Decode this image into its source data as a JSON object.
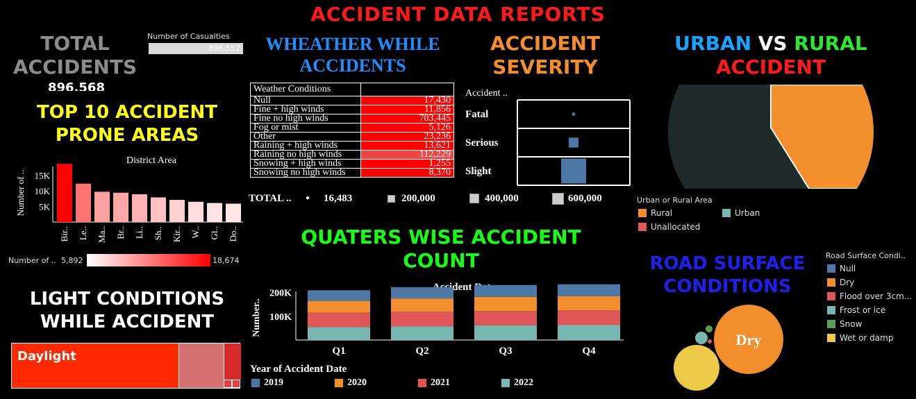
{
  "dashboard": {
    "title": "ACCIDENT DATA REPORTS"
  },
  "total_accidents": {
    "title_line1": "TOTAL",
    "title_line2": "ACCIDENTS",
    "value": "896,568",
    "casualties_label": "Number of Casualties",
    "casualties_value": "896,552"
  },
  "top10": {
    "title_line1": "TOP 10 ACCIDENT",
    "title_line2": "PRONE AREAS",
    "chart_data": {
      "type": "bar",
      "title": "District Area",
      "ylabel": "Number of ..",
      "categories": [
        "Bir..",
        "Le..",
        "Ma..",
        "Br..",
        "Li..",
        "Sh..",
        "Kir..",
        "W..",
        "Gl..",
        "Do.."
      ],
      "values": [
        18674,
        12300,
        9700,
        9400,
        8900,
        7900,
        7100,
        6500,
        6100,
        5892
      ],
      "yticks": [
        "5K",
        "10K",
        "15K"
      ],
      "ylim": [
        0,
        20000
      ]
    },
    "legend": {
      "label": "Number of ..",
      "min": "5,892",
      "max": "18,674"
    }
  },
  "light_conditions": {
    "title_line1": "LIGHT CONDITIONS",
    "title_line2": "WHILE ACCIDENT",
    "daylight_label": "Daylight"
  },
  "weather": {
    "title_line1": "WHEATHER WHILE",
    "title_line2": "ACCIDENTS",
    "column_header": "Weather Conditions",
    "rows": [
      {
        "label": "Null",
        "value": "17,430"
      },
      {
        "label": "Fine + high winds",
        "value": "11,856"
      },
      {
        "label": "Fine no high winds",
        "value": "703,445"
      },
      {
        "label": "Fog or mist",
        "value": "5,126"
      },
      {
        "label": "Other",
        "value": "23,236"
      },
      {
        "label": "Raining + high winds",
        "value": "13,621"
      },
      {
        "label": "Raining no high winds",
        "value": "112,229"
      },
      {
        "label": "Snowing + high winds",
        "value": "1,255"
      },
      {
        "label": "Snowing no high winds",
        "value": "8,370"
      }
    ]
  },
  "severity": {
    "title_line1": "ACCIDENT",
    "title_line2": "SEVERITY",
    "header": "Accident ..",
    "chart_data": {
      "type": "table",
      "categories": [
        "Fatal",
        "Serious",
        "Slight"
      ],
      "values": [
        11500,
        120000,
        765000
      ]
    },
    "size_legend": {
      "total_label": "TOTAL ..",
      "v1": "16,483",
      "v2": "200,000",
      "v3": "400,000",
      "v4": "600,000"
    }
  },
  "urban_rural": {
    "title_urban": "URBAN",
    "title_vs": "VS",
    "title_rural": "RURAL",
    "title_line2": "ACCIDENT",
    "legend_title": "Urban or Rural Area",
    "chart_data": {
      "type": "pie",
      "categories": [
        "Rural",
        "Urban",
        "Unallocated"
      ],
      "values": [
        41,
        59,
        0.1
      ]
    },
    "legend": [
      {
        "label": "Rural",
        "color": "#f28e2b"
      },
      {
        "label": "Urban",
        "color": "#76b7b2"
      },
      {
        "label": "Unallocated",
        "color": "#e15759"
      }
    ]
  },
  "quarters": {
    "title_line1": "QUATERS WISE ACCIDENT",
    "title_line2": "COUNT",
    "legend_title": "Year of Accident Date",
    "chart_data": {
      "type": "bar",
      "title": "Accident Date",
      "ylabel": "Number..",
      "categories": [
        "Q1",
        "Q2",
        "Q3",
        "Q4"
      ],
      "yticks": [
        "100K",
        "200K"
      ],
      "ylim": [
        0,
        240000
      ],
      "series": [
        {
          "name": "2019",
          "values": [
            45000,
            48000,
            50000,
            50000
          ],
          "color": "#4e79a7"
        },
        {
          "name": "2020",
          "values": [
            50000,
            55000,
            60000,
            60000
          ],
          "color": "#f28e2b"
        },
        {
          "name": "2021",
          "values": [
            60000,
            62000,
            60000,
            62000
          ],
          "color": "#e15759"
        },
        {
          "name": "2022",
          "values": [
            55000,
            58000,
            62000,
            63000
          ],
          "color": "#76b7b2"
        }
      ]
    }
  },
  "road_surface": {
    "title_line1": "ROAD SURFACE",
    "title_line2": "CONDITIONS",
    "legend_title": "Road Surface Condi..",
    "bubble_label": "Dry",
    "legend": [
      {
        "label": "Null",
        "color": "#4e79a7"
      },
      {
        "label": "Dry",
        "color": "#f28e2b"
      },
      {
        "label": "Flood over 3cm...",
        "color": "#e15759"
      },
      {
        "label": "Frost or ice",
        "color": "#76b7b2"
      },
      {
        "label": "Snow",
        "color": "#59a14f"
      },
      {
        "label": "Wet or damp",
        "color": "#edc948"
      }
    ]
  }
}
